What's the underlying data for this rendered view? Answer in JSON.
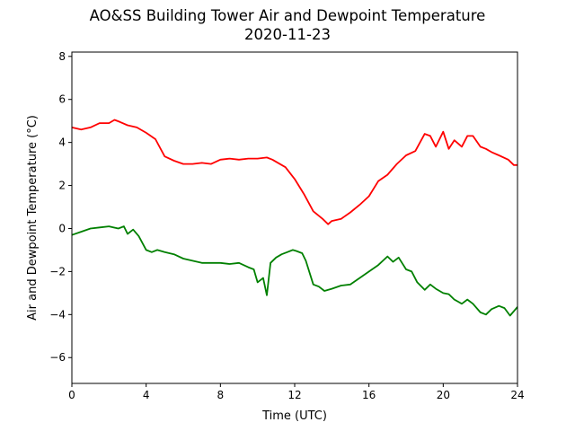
{
  "chart_data": {
    "type": "line",
    "title": "AO&SS Building Tower Air and Dewpoint Temperature",
    "subtitle": "2020-11-23",
    "xlabel": "Time (UTC)",
    "ylabel": "Air and Dewpoint Temperature (°C)",
    "xlim": [
      0,
      24
    ],
    "ylim": [
      -7.2,
      8.2
    ],
    "x_ticks": [
      0,
      4,
      8,
      12,
      16,
      20,
      24
    ],
    "y_ticks": [
      -6,
      -4,
      -2,
      0,
      2,
      4,
      6,
      8
    ],
    "grid": false,
    "legend": "none",
    "series": [
      {
        "color": "#ff0000",
        "x": [
          0.0,
          0.5,
          1.0,
          1.5,
          2.0,
          2.3,
          2.6,
          3.0,
          3.5,
          4.0,
          4.5,
          5.0,
          5.5,
          6.0,
          6.5,
          7.0,
          7.5,
          8.0,
          8.5,
          9.0,
          9.5,
          10.0,
          10.5,
          10.8,
          11.0,
          11.5,
          12.0,
          12.5,
          13.0,
          13.5,
          13.8,
          14.0,
          14.5,
          15.0,
          15.5,
          16.0,
          16.5,
          17.0,
          17.5,
          18.0,
          18.5,
          19.0,
          19.3,
          19.6,
          20.0,
          20.3,
          20.6,
          21.0,
          21.3,
          21.6,
          22.0,
          22.3,
          22.6,
          23.0,
          23.5,
          23.8,
          24.0
        ],
        "values": [
          4.7,
          4.6,
          4.7,
          4.9,
          4.9,
          5.05,
          4.95,
          4.8,
          4.7,
          4.45,
          4.15,
          3.35,
          3.15,
          3.0,
          3.0,
          3.05,
          3.0,
          3.2,
          3.25,
          3.2,
          3.25,
          3.25,
          3.3,
          3.2,
          3.1,
          2.85,
          2.3,
          1.6,
          0.8,
          0.45,
          0.2,
          0.35,
          0.45,
          0.75,
          1.1,
          1.5,
          2.2,
          2.5,
          3.0,
          3.4,
          3.6,
          4.4,
          4.3,
          3.8,
          4.5,
          3.7,
          4.1,
          3.8,
          4.3,
          4.3,
          3.8,
          3.7,
          3.55,
          3.4,
          3.2,
          2.95,
          2.95
        ]
      },
      {
        "color": "#008000",
        "x": [
          0.0,
          0.5,
          1.0,
          1.5,
          2.0,
          2.5,
          2.8,
          3.0,
          3.3,
          3.6,
          4.0,
          4.3,
          4.6,
          5.0,
          5.5,
          6.0,
          6.5,
          7.0,
          7.5,
          8.0,
          8.5,
          9.0,
          9.5,
          9.8,
          10.0,
          10.3,
          10.5,
          10.7,
          11.0,
          11.3,
          11.6,
          11.9,
          12.1,
          12.4,
          12.6,
          13.0,
          13.3,
          13.6,
          14.0,
          14.5,
          15.0,
          15.5,
          16.0,
          16.5,
          17.0,
          17.3,
          17.6,
          18.0,
          18.3,
          18.6,
          19.0,
          19.3,
          19.6,
          20.0,
          20.3,
          20.6,
          21.0,
          21.3,
          21.6,
          22.0,
          22.3,
          22.6,
          23.0,
          23.3,
          23.6,
          24.0
        ],
        "values": [
          -0.3,
          -0.15,
          0.0,
          0.05,
          0.1,
          0.0,
          0.1,
          -0.25,
          -0.05,
          -0.35,
          -1.0,
          -1.1,
          -1.0,
          -1.1,
          -1.2,
          -1.4,
          -1.5,
          -1.6,
          -1.6,
          -1.6,
          -1.65,
          -1.6,
          -1.8,
          -1.9,
          -2.5,
          -2.3,
          -3.1,
          -1.6,
          -1.35,
          -1.2,
          -1.1,
          -1.0,
          -1.05,
          -1.15,
          -1.5,
          -2.6,
          -2.7,
          -2.9,
          -2.8,
          -2.65,
          -2.6,
          -2.3,
          -2.0,
          -1.7,
          -1.3,
          -1.55,
          -1.35,
          -1.9,
          -2.0,
          -2.5,
          -2.85,
          -2.6,
          -2.8,
          -3.0,
          -3.05,
          -3.3,
          -3.5,
          -3.3,
          -3.5,
          -3.9,
          -4.0,
          -3.75,
          -3.6,
          -3.7,
          -4.05,
          -3.65
        ]
      }
    ]
  }
}
